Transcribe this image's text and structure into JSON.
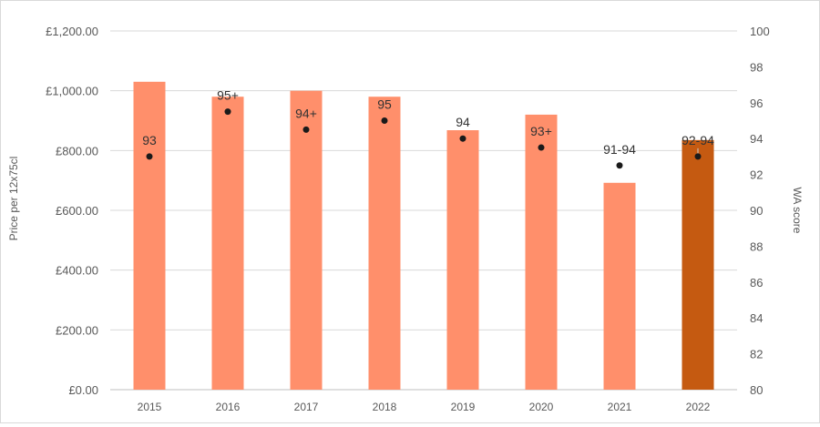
{
  "chart_data": {
    "type": "bar",
    "categories": [
      "2015",
      "2016",
      "2017",
      "2018",
      "2019",
      "2020",
      "2021",
      "2022"
    ],
    "series": [
      {
        "name": "",
        "axis": "left",
        "values": [
          1030,
          980,
          1000,
          980,
          868,
          920,
          692,
          835
        ],
        "colors": [
          "#FF8F6B",
          "#FF8F6B",
          "#FF8F6B",
          "#FF8F6B",
          "#FF8F6B",
          "#FF8F6B",
          "#FF8F6B",
          "#C55A11"
        ]
      },
      {
        "name": "",
        "axis": "right",
        "type": "scatter",
        "values": [
          93,
          95.5,
          94.5,
          95,
          94,
          93.5,
          92.5,
          93
        ],
        "labels": [
          "93",
          "95+",
          "94+",
          "95",
          "94",
          "93+",
          "91-94",
          "92-94"
        ],
        "color": "#1a1a1a"
      }
    ],
    "ylabel": "Price per 12x75cl",
    "y2label": "WA score",
    "ylim": [
      0,
      1200
    ],
    "y2lim": [
      80,
      100
    ],
    "yticks": [
      "£0.00",
      "£200.00",
      "£400.00",
      "£600.00",
      "£800.00",
      "£1,000.00",
      "£1,200.00"
    ],
    "y2ticks": [
      "80",
      "82",
      "84",
      "86",
      "88",
      "90",
      "92",
      "94",
      "96",
      "98",
      "100"
    ],
    "grid": true
  }
}
